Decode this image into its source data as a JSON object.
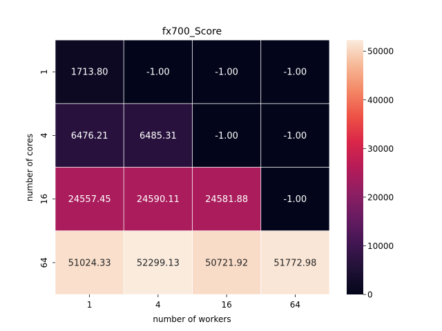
{
  "chart_data": {
    "type": "heatmap",
    "title": "fx700_Score",
    "xlabel": "number of workers",
    "ylabel": "number of cores",
    "x_categories": [
      "1",
      "4",
      "16",
      "64"
    ],
    "y_categories": [
      "1",
      "4",
      "16",
      "64"
    ],
    "values": [
      [
        1713.8,
        -1.0,
        -1.0,
        -1.0
      ],
      [
        6476.21,
        6485.31,
        -1.0,
        -1.0
      ],
      [
        24557.45,
        24590.11,
        24581.88,
        -1.0
      ],
      [
        51024.33,
        52299.13,
        50721.92,
        51772.98
      ]
    ],
    "value_format": "2 decimals",
    "colorbar": {
      "min": -1.0,
      "max": 52299.13,
      "ticks": [
        0,
        10000,
        20000,
        30000,
        40000,
        50000
      ],
      "colormap": "rocket"
    }
  }
}
